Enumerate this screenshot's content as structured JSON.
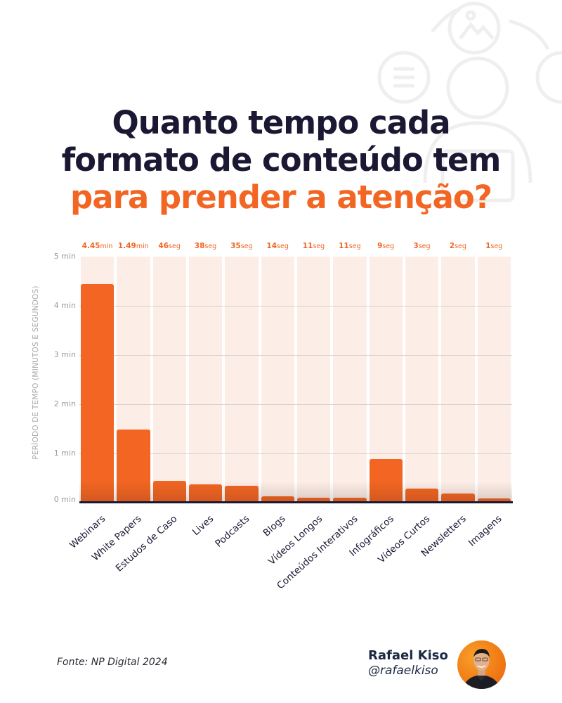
{
  "title": {
    "line1": "Quanto tempo cada",
    "line2": "formato de conteúdo tem",
    "line3": "para prender a atenção?"
  },
  "colors": {
    "accent": "#f26522",
    "dark": "#1b1833",
    "column_bg": "#fcede6",
    "axis_text": "#9a9aa0"
  },
  "chart_data": {
    "type": "bar",
    "title": "Quanto tempo cada formato de conteúdo tem para prender a atenção?",
    "xlabel": "",
    "ylabel": "PERÍODO DE TEMPO (MINUTOS E SEGUNDOS)",
    "ylim": [
      0,
      5
    ],
    "yticks": [
      "0 min",
      "1 min",
      "2 min",
      "3 min",
      "4 min",
      "5 min"
    ],
    "grid": true,
    "categories": [
      "Webinars",
      "White Papers",
      "Estudos de Caso",
      "Lives",
      "Podcasts",
      "Blogs",
      "Vídeos Longos",
      "Conteúdos Interativos",
      "Infográficos",
      "Vídeos Curtos",
      "Newsletters",
      "Imagens"
    ],
    "values_minutes": [
      4.45,
      1.49,
      0.767,
      0.633,
      0.583,
      0.233,
      0.183,
      0.183,
      0.15,
      0.05,
      0.033,
      0.017
    ],
    "bar_heights_minutes_as_drawn": [
      4.45,
      1.49,
      0.45,
      0.37,
      0.34,
      0.13,
      0.1,
      0.1,
      0.88,
      0.28,
      0.19,
      0.08
    ],
    "data_labels": [
      {
        "num": "4.45",
        "unit": "min"
      },
      {
        "num": "1.49",
        "unit": "min"
      },
      {
        "num": "46",
        "unit": "seg"
      },
      {
        "num": "38",
        "unit": "seg"
      },
      {
        "num": "35",
        "unit": "seg"
      },
      {
        "num": "14",
        "unit": "seg"
      },
      {
        "num": "11",
        "unit": "seg"
      },
      {
        "num": "11",
        "unit": "seg"
      },
      {
        "num": "9",
        "unit": "seg"
      },
      {
        "num": "3",
        "unit": "seg"
      },
      {
        "num": "2",
        "unit": "seg"
      },
      {
        "num": "1",
        "unit": "seg"
      }
    ],
    "legend": null
  },
  "footer": {
    "source": "Fonte: NP Digital 2024",
    "author_name": "Rafael Kiso",
    "author_handle": "@rafaelkiso"
  }
}
